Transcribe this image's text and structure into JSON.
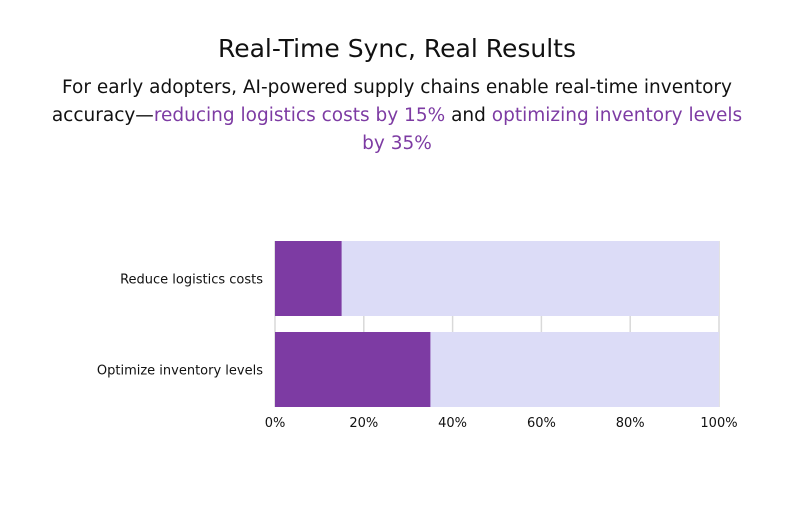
{
  "title": "Real-Time Sync, Real Results",
  "subtitle": {
    "part1": "For early adopters, AI-powered supply chains enable real-time inventory accuracy—",
    "highlight1": "reducing logistics costs by 15%",
    "part2": " and ",
    "highlight2": "optimizing inventory levels by 35%"
  },
  "colors": {
    "bar": "#7d3ba3",
    "track": "#dcdcf7",
    "highlight": "#7d3ba3",
    "grid": "#d9d9d9"
  },
  "chart_data": {
    "type": "bar",
    "orientation": "horizontal",
    "categories": [
      "Reduce logistics costs",
      "Optimize inventory levels"
    ],
    "values": [
      15,
      35
    ],
    "track_max": 100,
    "xlim": [
      0,
      100
    ],
    "xticks": [
      0,
      20,
      40,
      60,
      80,
      100
    ],
    "xtick_labels": [
      "0%",
      "20%",
      "40%",
      "60%",
      "80%",
      "100%"
    ],
    "grid": true
  }
}
